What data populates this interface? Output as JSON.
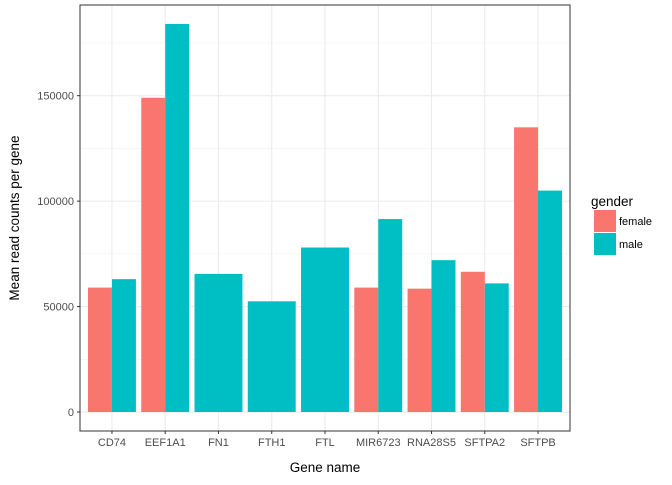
{
  "chart_data": {
    "type": "bar",
    "title": "",
    "xlabel": "Gene name",
    "ylabel": "Mean read counts per gene",
    "ylim": [
      -9000,
      193000
    ],
    "yticks": [
      0,
      50000,
      100000,
      150000
    ],
    "ytick_labels": [
      "0",
      "50000",
      "100000",
      "150000"
    ],
    "grid": true,
    "legend_position": "right",
    "legend_title": "gender",
    "categories": [
      "CD74",
      "EEF1A1",
      "FN1",
      "FTH1",
      "FTL",
      "MIR6723",
      "RNA28S5",
      "SFTPA2",
      "SFTPB"
    ],
    "series": [
      {
        "name": "female",
        "color": "#F8766D",
        "values": [
          59000,
          149000,
          null,
          null,
          null,
          59000,
          58500,
          66500,
          135000
        ]
      },
      {
        "name": "male",
        "color": "#00BFC4",
        "values": [
          63000,
          184000,
          65500,
          52500,
          78000,
          91500,
          72000,
          61000,
          105000
        ]
      }
    ]
  }
}
